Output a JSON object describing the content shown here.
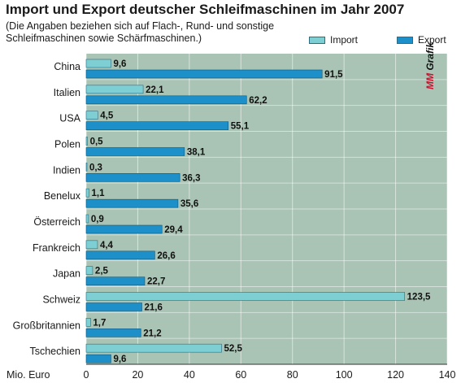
{
  "title": "Import und Export deutscher Schleifmaschinen im Jahr 2007",
  "subtitle": "(Die Angaben beziehen sich auf Flach-, Rund- und sonstige Schleifmaschinen sowie Schärfmaschinen.)",
  "watermark": {
    "mm": "MM",
    "rest": " Grafik"
  },
  "colors": {
    "import": "#7ecfd4",
    "export": "#1d8fc9",
    "plot_bg": "#a9c3b4"
  },
  "chart_data": {
    "type": "bar",
    "orientation": "horizontal",
    "categories": [
      "China",
      "Italien",
      "USA",
      "Polen",
      "Indien",
      "Benelux",
      "Österreich",
      "Frankreich",
      "Japan",
      "Schweiz",
      "Großbritannien",
      "Tschechien"
    ],
    "series": [
      {
        "name": "Import",
        "values": [
          9.6,
          22.1,
          4.5,
          0.5,
          0.3,
          1.1,
          0.9,
          4.4,
          2.5,
          123.5,
          1.7,
          52.5
        ],
        "labels": [
          "9,6",
          "22,1",
          "4,5",
          "0,5",
          "0,3",
          "1,1",
          "0,9",
          "4,4",
          "2,5",
          "123,5",
          "1,7",
          "52,5"
        ]
      },
      {
        "name": "Export",
        "values": [
          91.5,
          62.2,
          55.1,
          38.1,
          36.3,
          35.6,
          29.4,
          26.6,
          22.7,
          21.6,
          21.2,
          9.6
        ],
        "labels": [
          "91,5",
          "62,2",
          "55,1",
          "38,1",
          "36,3",
          "35,6",
          "29,4",
          "26,6",
          "22,7",
          "21,6",
          "21,2",
          "9,6"
        ]
      }
    ],
    "xlabel": "Mio. Euro",
    "xlim": [
      0,
      140
    ],
    "xticks": [
      0,
      20,
      40,
      60,
      80,
      100,
      120,
      140
    ],
    "legend": "top-right",
    "grid": true
  }
}
